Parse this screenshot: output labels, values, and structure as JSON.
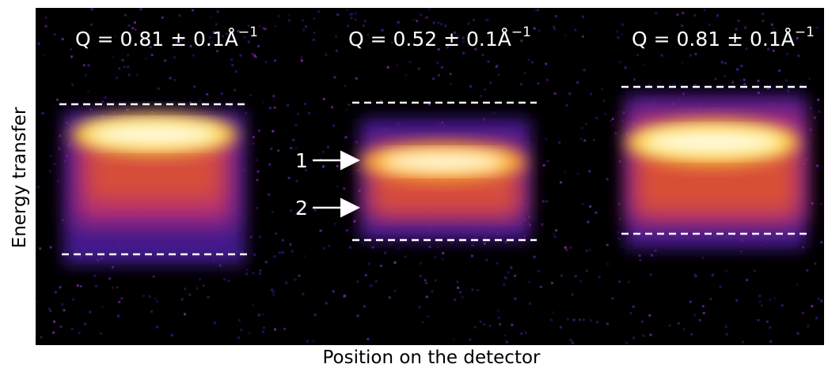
{
  "panels": [
    {
      "label": {
        "text": "Q = 0.81 ± 0.1Å",
        "superscript": "−1"
      }
    },
    {
      "label": {
        "text": "Q = 0.52 ± 0.1Å",
        "superscript": "−1"
      },
      "markers": [
        "1",
        "2"
      ]
    },
    {
      "label": {
        "text": "Q = 0.81 ± 0.1Å",
        "superscript": "−1"
      }
    }
  ],
  "y_axis_label": "Energy transfer",
  "x_axis_label": "Position on the detector"
}
